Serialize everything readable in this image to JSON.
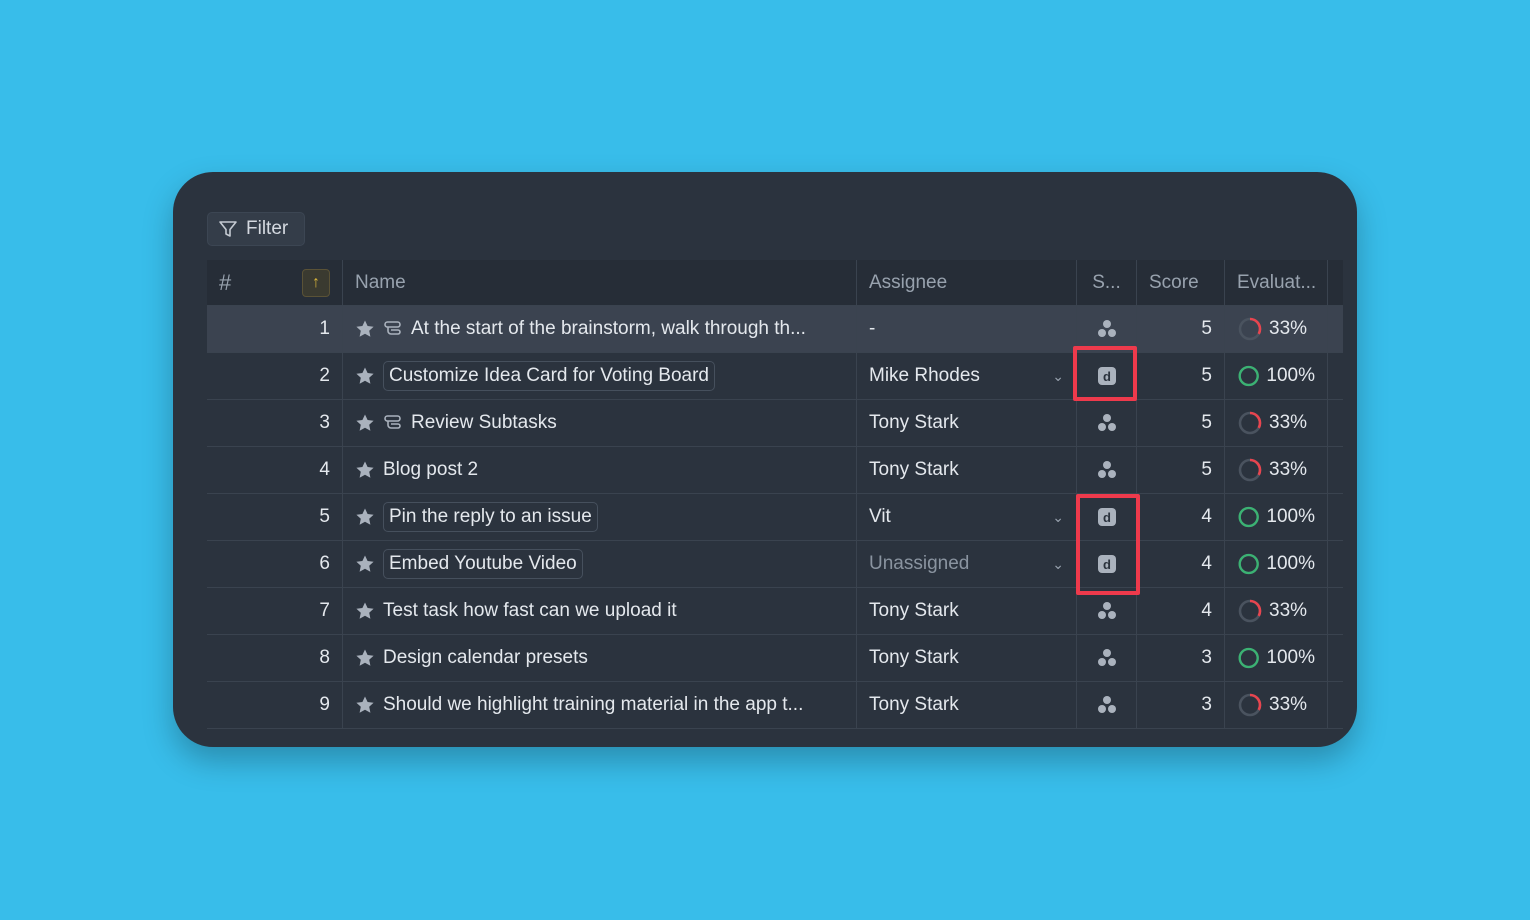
{
  "filter_label": "Filter",
  "headers": {
    "num": "#",
    "name": "Name",
    "assignee": "Assignee",
    "status": "S...",
    "score": "Score",
    "evaluation": "Evaluat..."
  },
  "colors": {
    "background": "#38bdea",
    "card": "#2b333e",
    "highlight": "#ee3a4c",
    "progress_full": "#3bb273",
    "progress_partial": "#e8454f",
    "sort_accent": "#d8b43a"
  },
  "rows": [
    {
      "num": "1",
      "name": "At the start of the brainstorm, walk through th...",
      "subtask_icon": true,
      "chip": false,
      "assignee": "-",
      "dropdown": false,
      "status_icon": "team-icon",
      "score": "5",
      "eval": "33%",
      "progress": 33,
      "selected": true
    },
    {
      "num": "2",
      "name": "Customize Idea Card for Voting Board",
      "subtask_icon": false,
      "chip": true,
      "assignee": "Mike Rhodes",
      "dropdown": true,
      "status_icon": "d-badge-icon",
      "score": "5",
      "eval": "100%",
      "progress": 100
    },
    {
      "num": "3",
      "name": "Review Subtasks",
      "subtask_icon": true,
      "chip": false,
      "assignee": "Tony Stark",
      "dropdown": false,
      "status_icon": "team-icon",
      "score": "5",
      "eval": "33%",
      "progress": 33
    },
    {
      "num": "4",
      "name": "Blog post 2",
      "subtask_icon": false,
      "chip": false,
      "assignee": "Tony Stark",
      "dropdown": false,
      "status_icon": "team-icon",
      "score": "5",
      "eval": "33%",
      "progress": 33
    },
    {
      "num": "5",
      "name": "Pin the reply to an issue",
      "subtask_icon": false,
      "chip": true,
      "assignee": "Vit",
      "dropdown": true,
      "status_icon": "d-badge-icon",
      "score": "4",
      "eval": "100%",
      "progress": 100
    },
    {
      "num": "6",
      "name": "Embed Youtube Video",
      "subtask_icon": false,
      "chip": true,
      "assignee": "Unassigned",
      "assignee_muted": true,
      "dropdown": true,
      "status_icon": "d-badge-icon",
      "score": "4",
      "eval": "100%",
      "progress": 100
    },
    {
      "num": "7",
      "name": "Test task how fast can we upload it",
      "subtask_icon": false,
      "chip": false,
      "assignee": "Tony Stark",
      "dropdown": false,
      "status_icon": "team-icon",
      "score": "4",
      "eval": "33%",
      "progress": 33
    },
    {
      "num": "8",
      "name": "Design calendar presets",
      "subtask_icon": false,
      "chip": false,
      "assignee": "Tony Stark",
      "dropdown": false,
      "status_icon": "team-icon",
      "score": "3",
      "eval": "100%",
      "progress": 100
    },
    {
      "num": "9",
      "name": "Should we highlight training material in the app t...",
      "subtask_icon": false,
      "chip": false,
      "assignee": "Tony Stark",
      "dropdown": false,
      "status_icon": "team-icon",
      "score": "3",
      "eval": "33%",
      "progress": 33
    }
  ]
}
